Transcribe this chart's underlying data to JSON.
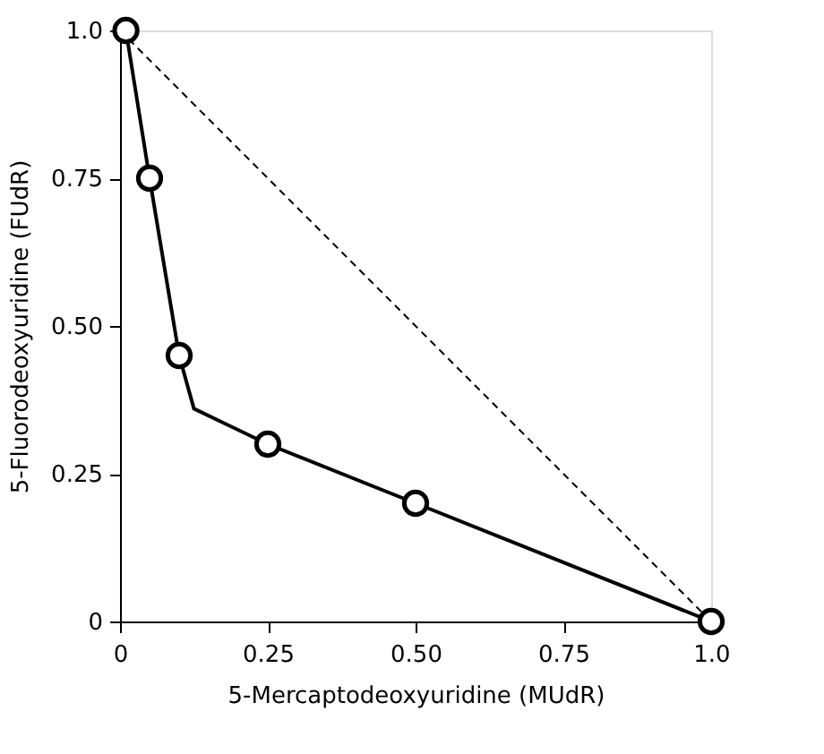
{
  "chart_data": {
    "type": "line",
    "xlabel": "5-Mercaptodeoxyuridine (MUdR)",
    "ylabel": "5-Fluorodeoxyuridine (FUdR)",
    "xlim": [
      0,
      1.0
    ],
    "ylim": [
      0,
      1.0
    ],
    "xticks": [
      0,
      0.25,
      {
        "value": 0.5,
        "label": "0.50"
      },
      0.75,
      {
        "value": 1.0,
        "label": "1.0"
      }
    ],
    "yticks": [
      0,
      0.25,
      {
        "value": 0.5,
        "label": "0.50"
      },
      0.75,
      {
        "value": 1.0,
        "label": "1.0"
      }
    ],
    "series": [
      {
        "type": "line",
        "color": "#000000",
        "line_style": "dashed",
        "marker": "none",
        "x": [
          0,
          1.0
        ],
        "values": [
          1.0,
          0
        ]
      },
      {
        "type": "line",
        "color": "#000000",
        "line_style": "solid",
        "marker": "none",
        "x": [
          0.01,
          0.05,
          0.1,
          0.125,
          0.25,
          0.5,
          1.0
        ],
        "values": [
          1.0,
          0.75,
          0.45,
          0.36,
          0.3,
          0.2,
          0
        ]
      },
      {
        "type": "scatter",
        "color": "#000000",
        "marker": "circle",
        "x": [
          0.01,
          0.05,
          0.1,
          0.25,
          0.5,
          1.0
        ],
        "values": [
          1.0,
          0.75,
          0.45,
          0.3,
          0.2,
          0
        ]
      }
    ]
  }
}
